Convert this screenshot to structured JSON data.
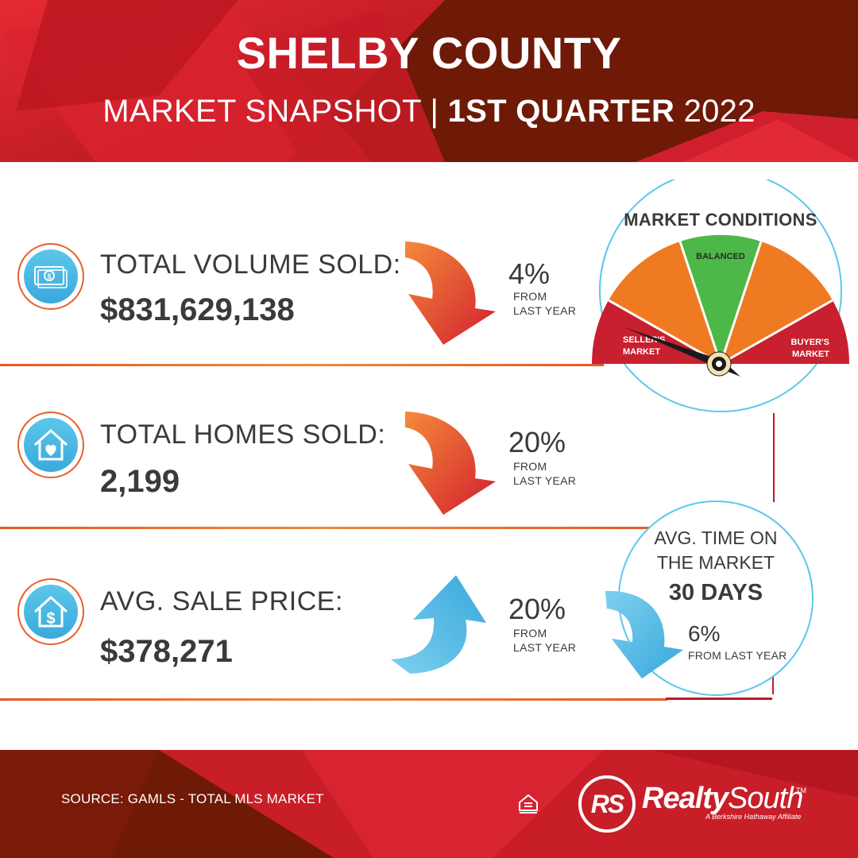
{
  "header": {
    "title": "SHELBY COUNTY",
    "subtitle_light": "MARKET SNAPSHOT | ",
    "subtitle_bold": "1ST QUARTER",
    "subtitle_year": " 2022"
  },
  "stats": [
    {
      "label": "TOTAL VOLUME SOLD:",
      "value": "$831,629,138",
      "change": "4%",
      "change_note_1": "FROM",
      "change_note_2": "LAST YEAR",
      "direction": "down",
      "icon": "money-icon"
    },
    {
      "label": "TOTAL HOMES SOLD:",
      "value": "2,199",
      "change": "20%",
      "change_note_1": "FROM",
      "change_note_2": "LAST YEAR",
      "direction": "down",
      "icon": "house-heart-icon"
    },
    {
      "label": "AVG. SALE PRICE:",
      "value": "$378,271",
      "change": "20%",
      "change_note_1": "FROM",
      "change_note_2": "LAST YEAR",
      "direction": "up",
      "icon": "house-dollar-icon"
    }
  ],
  "gauge": {
    "title": "MARKET CONDITIONS",
    "left_label_1": "SELLER'S",
    "left_label_2": "MARKET",
    "center_label": "BALANCED",
    "right_label_1": "BUYER'S",
    "right_label_2": "MARKET"
  },
  "time_on_market": {
    "title_1": "AVG. TIME ON",
    "title_2": "THE MARKET",
    "days": "30 DAYS",
    "change": "6%",
    "change_note": "FROM LAST YEAR",
    "direction": "down"
  },
  "footer": {
    "source": "SOURCE: GAMLS - TOTAL MLS MARKET",
    "logo_mark": "RS",
    "brand_bold": "Realty",
    "brand_light": "South",
    "brand_tm": "TM",
    "brand_sub": "A Berkshire Hathaway Affiliate",
    "eho_icon": "equal-housing-icon"
  },
  "colors": {
    "red_dark": "#7a1608",
    "red": "#d01e2e",
    "orange": "#f07a22",
    "green": "#4cb848",
    "blue": "#4bb8e2"
  }
}
